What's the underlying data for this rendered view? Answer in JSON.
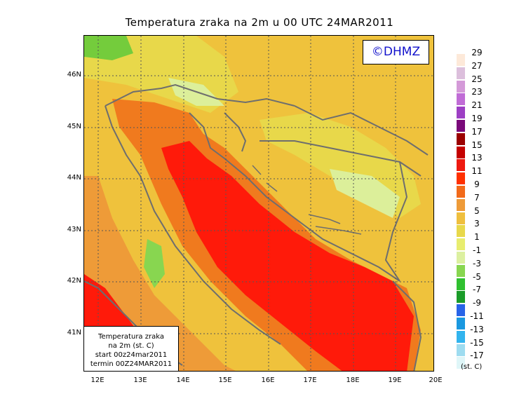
{
  "title": "Temperatura zraka na 2m u 00 UTC 24MAR2011",
  "copyright": "©DHMZ",
  "info_box": {
    "line1": "Temperatura zraka",
    "line2": "na 2m (st. C)",
    "line3": "start 00z24mar2011",
    "line4": "termin 00Z24MAR2011"
  },
  "latitude_ticks": [
    "46N",
    "45N",
    "44N",
    "43N",
    "42N",
    "41N"
  ],
  "longitude_ticks": [
    "12E",
    "13E",
    "14E",
    "15E",
    "16E",
    "17E",
    "18E",
    "19E",
    "20E"
  ],
  "legend": {
    "unit": "(st. C)",
    "labels": [
      "29",
      "27",
      "25",
      "23",
      "21",
      "19",
      "17",
      "15",
      "13",
      "11",
      "9",
      "7",
      "5",
      "3",
      "1",
      "-1",
      "-3",
      "-5",
      "-7",
      "-9",
      "-11",
      "-13",
      "-15",
      "-17"
    ],
    "colors": [
      "#fde9d9",
      "#dcbfdc",
      "#d49ad8",
      "#c06cd6",
      "#9d3fc4",
      "#7a0a7a",
      "#9b0000",
      "#c40000",
      "#ee1a10",
      "#ff3000",
      "#f26a1a",
      "#ee9b38",
      "#efbf3e",
      "#e8d84a",
      "#e8ed6f",
      "#dcf0a0",
      "#88d650",
      "#30c030",
      "#1a9c28",
      "#2864e8",
      "#1a98e0",
      "#32b4ee",
      "#9edcf0",
      "#dff6f8"
    ]
  },
  "map": {
    "extent": {
      "lon_min": 11.8,
      "lon_max": 20.0,
      "lat_min": 40.3,
      "lat_max": 46.7
    },
    "field_colors": {
      "warm_sea": "#ff1a0a",
      "warm_coast": "#f07a1e",
      "mild": "#ee9b38",
      "cool": "#efc23c",
      "cold": "#e8d84a",
      "colder": "#dcef9a",
      "freezing": "#74cc3c",
      "border": "#6e6e6e",
      "grid": "#555555"
    }
  }
}
